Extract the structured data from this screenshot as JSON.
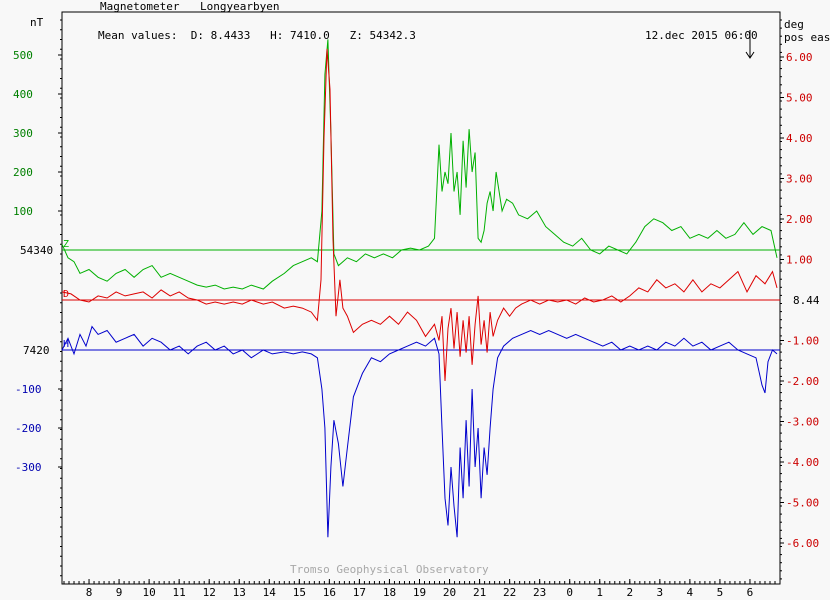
{
  "header": {
    "title": "Magnetometer",
    "station": "Longyearbyen",
    "mean_values": "Mean values:  D: 8.4433   H: 7410.0   Z: 54342.3",
    "timestamp": "12.dec 2015 06:00",
    "footer": "Tromso Geophysical Observatory"
  },
  "colors": {
    "Z": "#00b000",
    "D": "#dd0000",
    "H": "#0000cc",
    "axis": "#000000",
    "frame": "#000000"
  },
  "chart_data": {
    "type": "line",
    "x_unit": "hour (UT)",
    "x_tick_labels": [
      "8",
      "9",
      "10",
      "11",
      "12",
      "13",
      "14",
      "15",
      "16",
      "17",
      "18",
      "19",
      "20",
      "21",
      "22",
      "23",
      "0",
      "1",
      "2",
      "3",
      "4",
      "5",
      "6"
    ],
    "x_range_hours": [
      7.1,
      31.0
    ],
    "left_axis": {
      "unit_label": "nT",
      "z_ticks": [
        "500",
        "400",
        "300",
        "200",
        "100"
      ],
      "h_ticks": [
        "-100",
        "-200",
        "-300"
      ],
      "z_baseline_label": "54340",
      "h_baseline_label": "7420"
    },
    "right_axis": {
      "unit_label_1": "deg",
      "unit_label_2": "pos east",
      "ticks": [
        "6.00",
        "5.00",
        "4.00",
        "3.00",
        "2.00",
        "1.00",
        "-1.00",
        "-2.00",
        "-3.00",
        "-4.00",
        "-5.00",
        "-6.00"
      ],
      "baseline_label": "8.44"
    },
    "series": [
      {
        "name": "Z",
        "unit": "nT relative to 54340",
        "points": [
          [
            7.1,
            15
          ],
          [
            7.3,
            -20
          ],
          [
            7.5,
            -30
          ],
          [
            7.7,
            -60
          ],
          [
            8.0,
            -50
          ],
          [
            8.3,
            -70
          ],
          [
            8.6,
            -80
          ],
          [
            8.9,
            -60
          ],
          [
            9.2,
            -50
          ],
          [
            9.5,
            -70
          ],
          [
            9.8,
            -50
          ],
          [
            10.1,
            -40
          ],
          [
            10.4,
            -70
          ],
          [
            10.7,
            -60
          ],
          [
            11.0,
            -70
          ],
          [
            11.3,
            -80
          ],
          [
            11.6,
            -90
          ],
          [
            11.9,
            -95
          ],
          [
            12.2,
            -90
          ],
          [
            12.5,
            -100
          ],
          [
            12.8,
            -95
          ],
          [
            13.1,
            -100
          ],
          [
            13.4,
            -90
          ],
          [
            13.8,
            -100
          ],
          [
            14.1,
            -80
          ],
          [
            14.5,
            -60
          ],
          [
            14.8,
            -40
          ],
          [
            15.1,
            -30
          ],
          [
            15.4,
            -20
          ],
          [
            15.6,
            -30
          ],
          [
            15.75,
            100
          ],
          [
            15.85,
            450
          ],
          [
            15.95,
            540
          ],
          [
            16.05,
            300
          ],
          [
            16.15,
            -10
          ],
          [
            16.3,
            -40
          ],
          [
            16.45,
            -30
          ],
          [
            16.6,
            -20
          ],
          [
            16.9,
            -30
          ],
          [
            17.2,
            -10
          ],
          [
            17.5,
            -20
          ],
          [
            17.8,
            -10
          ],
          [
            18.1,
            -20
          ],
          [
            18.4,
            0
          ],
          [
            18.7,
            5
          ],
          [
            19.0,
            0
          ],
          [
            19.3,
            10
          ],
          [
            19.5,
            30
          ],
          [
            19.65,
            270
          ],
          [
            19.75,
            150
          ],
          [
            19.85,
            200
          ],
          [
            19.95,
            170
          ],
          [
            20.05,
            300
          ],
          [
            20.15,
            150
          ],
          [
            20.25,
            200
          ],
          [
            20.35,
            90
          ],
          [
            20.45,
            280
          ],
          [
            20.55,
            160
          ],
          [
            20.65,
            310
          ],
          [
            20.75,
            200
          ],
          [
            20.85,
            250
          ],
          [
            20.95,
            30
          ],
          [
            21.05,
            20
          ],
          [
            21.15,
            50
          ],
          [
            21.25,
            120
          ],
          [
            21.35,
            150
          ],
          [
            21.45,
            100
          ],
          [
            21.55,
            200
          ],
          [
            21.75,
            100
          ],
          [
            21.9,
            130
          ],
          [
            22.1,
            120
          ],
          [
            22.3,
            90
          ],
          [
            22.6,
            80
          ],
          [
            22.9,
            100
          ],
          [
            23.2,
            60
          ],
          [
            23.5,
            40
          ],
          [
            23.8,
            20
          ],
          [
            24.1,
            10
          ],
          [
            24.4,
            30
          ],
          [
            24.7,
            0
          ],
          [
            25.0,
            -10
          ],
          [
            25.3,
            10
          ],
          [
            25.6,
            0
          ],
          [
            25.9,
            -10
          ],
          [
            26.2,
            20
          ],
          [
            26.5,
            60
          ],
          [
            26.8,
            80
          ],
          [
            27.1,
            70
          ],
          [
            27.4,
            50
          ],
          [
            27.7,
            60
          ],
          [
            28.0,
            30
          ],
          [
            28.3,
            40
          ],
          [
            28.6,
            30
          ],
          [
            28.9,
            50
          ],
          [
            29.2,
            30
          ],
          [
            29.5,
            40
          ],
          [
            29.8,
            70
          ],
          [
            30.1,
            40
          ],
          [
            30.4,
            60
          ],
          [
            30.7,
            50
          ],
          [
            30.9,
            -20
          ]
        ]
      },
      {
        "name": "D",
        "unit": "deg relative to 8.44",
        "points": [
          [
            7.1,
            0.2
          ],
          [
            7.4,
            0.15
          ],
          [
            7.7,
            0.0
          ],
          [
            8.0,
            -0.05
          ],
          [
            8.3,
            0.1
          ],
          [
            8.6,
            0.05
          ],
          [
            8.9,
            0.2
          ],
          [
            9.2,
            0.1
          ],
          [
            9.5,
            0.15
          ],
          [
            9.8,
            0.2
          ],
          [
            10.1,
            0.05
          ],
          [
            10.4,
            0.25
          ],
          [
            10.7,
            0.1
          ],
          [
            11.0,
            0.2
          ],
          [
            11.3,
            0.05
          ],
          [
            11.6,
            0.0
          ],
          [
            11.9,
            -0.1
          ],
          [
            12.2,
            -0.05
          ],
          [
            12.5,
            -0.1
          ],
          [
            12.8,
            -0.05
          ],
          [
            13.1,
            -0.1
          ],
          [
            13.4,
            0.0
          ],
          [
            13.8,
            -0.1
          ],
          [
            14.1,
            -0.05
          ],
          [
            14.5,
            -0.2
          ],
          [
            14.8,
            -0.15
          ],
          [
            15.1,
            -0.2
          ],
          [
            15.4,
            -0.3
          ],
          [
            15.6,
            -0.5
          ],
          [
            15.72,
            0.5
          ],
          [
            15.82,
            4.0
          ],
          [
            15.92,
            6.2
          ],
          [
            16.02,
            5.2
          ],
          [
            16.12,
            1.5
          ],
          [
            16.22,
            -0.4
          ],
          [
            16.35,
            0.5
          ],
          [
            16.45,
            -0.2
          ],
          [
            16.6,
            -0.4
          ],
          [
            16.8,
            -0.8
          ],
          [
            17.1,
            -0.6
          ],
          [
            17.4,
            -0.5
          ],
          [
            17.7,
            -0.6
          ],
          [
            18.0,
            -0.4
          ],
          [
            18.3,
            -0.6
          ],
          [
            18.6,
            -0.3
          ],
          [
            18.9,
            -0.5
          ],
          [
            19.2,
            -0.9
          ],
          [
            19.5,
            -0.6
          ],
          [
            19.65,
            -1.0
          ],
          [
            19.75,
            -0.4
          ],
          [
            19.85,
            -2.0
          ],
          [
            19.95,
            -0.7
          ],
          [
            20.05,
            -0.2
          ],
          [
            20.15,
            -1.2
          ],
          [
            20.25,
            -0.3
          ],
          [
            20.35,
            -1.4
          ],
          [
            20.45,
            -0.5
          ],
          [
            20.55,
            -1.3
          ],
          [
            20.65,
            -0.4
          ],
          [
            20.75,
            -1.6
          ],
          [
            20.85,
            -0.6
          ],
          [
            20.95,
            0.1
          ],
          [
            21.05,
            -1.1
          ],
          [
            21.15,
            -0.5
          ],
          [
            21.25,
            -1.3
          ],
          [
            21.35,
            -0.3
          ],
          [
            21.45,
            -0.9
          ],
          [
            21.6,
            -0.5
          ],
          [
            21.8,
            -0.2
          ],
          [
            22.0,
            -0.4
          ],
          [
            22.2,
            -0.2
          ],
          [
            22.4,
            -0.1
          ],
          [
            22.7,
            0.0
          ],
          [
            23.0,
            -0.1
          ],
          [
            23.3,
            0.0
          ],
          [
            23.6,
            -0.05
          ],
          [
            23.9,
            0.0
          ],
          [
            24.2,
            -0.1
          ],
          [
            24.5,
            0.05
          ],
          [
            24.8,
            -0.05
          ],
          [
            25.1,
            0.0
          ],
          [
            25.4,
            0.1
          ],
          [
            25.7,
            -0.05
          ],
          [
            26.0,
            0.1
          ],
          [
            26.3,
            0.3
          ],
          [
            26.6,
            0.2
          ],
          [
            26.9,
            0.5
          ],
          [
            27.2,
            0.3
          ],
          [
            27.5,
            0.4
          ],
          [
            27.8,
            0.2
          ],
          [
            28.1,
            0.5
          ],
          [
            28.4,
            0.2
          ],
          [
            28.7,
            0.4
          ],
          [
            29.0,
            0.3
          ],
          [
            29.3,
            0.5
          ],
          [
            29.6,
            0.7
          ],
          [
            29.9,
            0.2
          ],
          [
            30.2,
            0.6
          ],
          [
            30.5,
            0.4
          ],
          [
            30.75,
            0.7
          ],
          [
            30.9,
            0.3
          ]
        ]
      },
      {
        "name": "H",
        "unit": "nT relative to 7420",
        "points": [
          [
            7.1,
            0
          ],
          [
            7.3,
            30
          ],
          [
            7.5,
            -10
          ],
          [
            7.7,
            40
          ],
          [
            7.9,
            10
          ],
          [
            8.1,
            60
          ],
          [
            8.3,
            40
          ],
          [
            8.6,
            50
          ],
          [
            8.9,
            20
          ],
          [
            9.2,
            30
          ],
          [
            9.5,
            40
          ],
          [
            9.8,
            10
          ],
          [
            10.1,
            30
          ],
          [
            10.4,
            20
          ],
          [
            10.7,
            0
          ],
          [
            11.0,
            10
          ],
          [
            11.3,
            -10
          ],
          [
            11.6,
            10
          ],
          [
            11.9,
            20
          ],
          [
            12.2,
            0
          ],
          [
            12.5,
            10
          ],
          [
            12.8,
            -10
          ],
          [
            13.1,
            0
          ],
          [
            13.4,
            -20
          ],
          [
            13.8,
            0
          ],
          [
            14.1,
            -10
          ],
          [
            14.5,
            -5
          ],
          [
            14.8,
            -10
          ],
          [
            15.1,
            -5
          ],
          [
            15.4,
            -10
          ],
          [
            15.6,
            -20
          ],
          [
            15.75,
            -100
          ],
          [
            15.85,
            -200
          ],
          [
            15.95,
            -480
          ],
          [
            16.05,
            -300
          ],
          [
            16.15,
            -180
          ],
          [
            16.3,
            -240
          ],
          [
            16.45,
            -350
          ],
          [
            16.6,
            -250
          ],
          [
            16.8,
            -120
          ],
          [
            17.1,
            -60
          ],
          [
            17.4,
            -20
          ],
          [
            17.7,
            -30
          ],
          [
            18.0,
            -10
          ],
          [
            18.3,
            0
          ],
          [
            18.6,
            10
          ],
          [
            18.9,
            20
          ],
          [
            19.2,
            10
          ],
          [
            19.5,
            30
          ],
          [
            19.65,
            -10
          ],
          [
            19.75,
            -200
          ],
          [
            19.85,
            -380
          ],
          [
            19.95,
            -450
          ],
          [
            20.05,
            -300
          ],
          [
            20.15,
            -400
          ],
          [
            20.25,
            -480
          ],
          [
            20.35,
            -250
          ],
          [
            20.45,
            -380
          ],
          [
            20.55,
            -180
          ],
          [
            20.65,
            -350
          ],
          [
            20.75,
            -100
          ],
          [
            20.85,
            -300
          ],
          [
            20.95,
            -200
          ],
          [
            21.05,
            -380
          ],
          [
            21.15,
            -250
          ],
          [
            21.25,
            -320
          ],
          [
            21.35,
            -200
          ],
          [
            21.45,
            -100
          ],
          [
            21.6,
            -20
          ],
          [
            21.8,
            10
          ],
          [
            22.1,
            30
          ],
          [
            22.4,
            40
          ],
          [
            22.7,
            50
          ],
          [
            23.0,
            40
          ],
          [
            23.3,
            50
          ],
          [
            23.6,
            40
          ],
          [
            23.9,
            30
          ],
          [
            24.2,
            40
          ],
          [
            24.5,
            30
          ],
          [
            24.8,
            20
          ],
          [
            25.1,
            10
          ],
          [
            25.4,
            20
          ],
          [
            25.7,
            0
          ],
          [
            26.0,
            10
          ],
          [
            26.3,
            0
          ],
          [
            26.6,
            10
          ],
          [
            26.9,
            0
          ],
          [
            27.2,
            20
          ],
          [
            27.5,
            10
          ],
          [
            27.8,
            30
          ],
          [
            28.1,
            10
          ],
          [
            28.4,
            20
          ],
          [
            28.7,
            0
          ],
          [
            29.0,
            10
          ],
          [
            29.3,
            20
          ],
          [
            29.6,
            0
          ],
          [
            29.9,
            -10
          ],
          [
            30.2,
            -20
          ],
          [
            30.4,
            -90
          ],
          [
            30.5,
            -110
          ],
          [
            30.6,
            -30
          ],
          [
            30.75,
            0
          ],
          [
            30.9,
            -10
          ]
        ]
      }
    ]
  }
}
